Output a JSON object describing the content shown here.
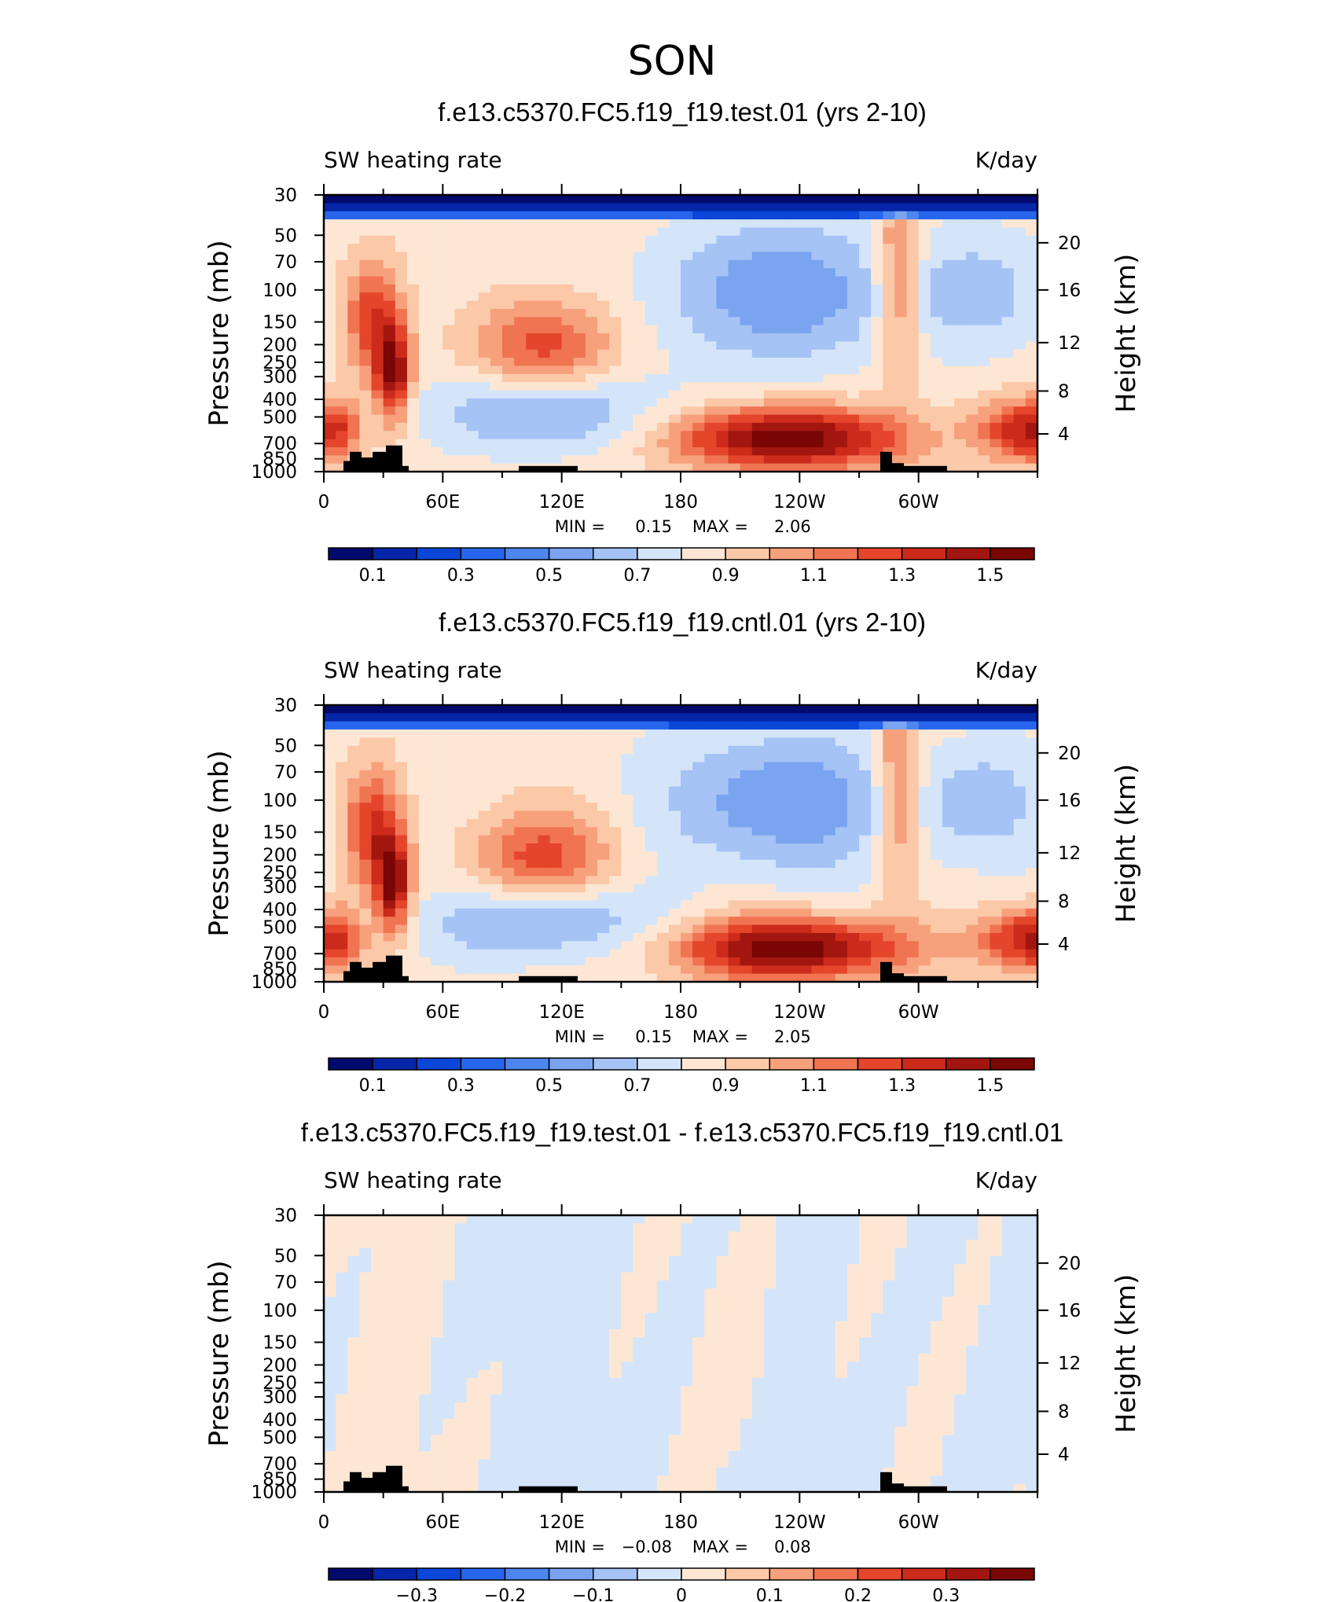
{
  "figure": {
    "season": "SON"
  },
  "colors": {
    "levels12": [
      "#030a6e",
      "#0526a8",
      "#0a46d8",
      "#2766ec",
      "#4e86ef",
      "#7aa4f0",
      "#a5c3f4",
      "#d4e5fa",
      "#fde7d4",
      "#fbc8a8",
      "#f7a07c",
      "#f07452",
      "#e4452b",
      "#cc2a1a",
      "#a31610",
      "#7a0606"
    ],
    "terrain": "#000000"
  },
  "chart_data": [
    {
      "type": "heatmap",
      "title": "f.e13.c5370.FC5.f19_f19.test.01 (yrs 2-10)",
      "left_label": "SW heating rate",
      "right_label": "K/day",
      "ylabel": "Pressure (mb)",
      "y2label": "Height (km)",
      "y_ticks": [
        "30",
        "50",
        "70",
        "100",
        "150",
        "200",
        "250",
        "300",
        "400",
        "500",
        "700",
        "850",
        "1000"
      ],
      "y2_ticks": [
        "20",
        "16",
        "12",
        "8",
        "4"
      ],
      "x_ticks": [
        "0",
        "60E",
        "120E",
        "180",
        "120W",
        "60W"
      ],
      "min_label": "MIN =",
      "min_value": "0.15",
      "max_label": "MAX =",
      "max_value": "2.06",
      "colorbar_labels": [
        "0.1",
        "0.3",
        "0.5",
        "0.7",
        "0.9",
        "1.1",
        "1.3",
        "1.5"
      ]
    },
    {
      "type": "heatmap",
      "title": "f.e13.c5370.FC5.f19_f19.cntl.01 (yrs 2-10)",
      "left_label": "SW heating rate",
      "right_label": "K/day",
      "ylabel": "Pressure (mb)",
      "y2label": "Height (km)",
      "y_ticks": [
        "30",
        "50",
        "70",
        "100",
        "150",
        "200",
        "250",
        "300",
        "400",
        "500",
        "700",
        "850",
        "1000"
      ],
      "y2_ticks": [
        "20",
        "16",
        "12",
        "8",
        "4"
      ],
      "x_ticks": [
        "0",
        "60E",
        "120E",
        "180",
        "120W",
        "60W"
      ],
      "min_label": "MIN =",
      "min_value": "0.15",
      "max_label": "MAX =",
      "max_value": "2.05",
      "colorbar_labels": [
        "0.1",
        "0.3",
        "0.5",
        "0.7",
        "0.9",
        "1.1",
        "1.3",
        "1.5"
      ]
    },
    {
      "type": "heatmap",
      "title": "f.e13.c5370.FC5.f19_f19.test.01 - f.e13.c5370.FC5.f19_f19.cntl.01",
      "left_label": "SW heating rate",
      "right_label": "K/day",
      "ylabel": "Pressure (mb)",
      "y2label": "Height (km)",
      "y_ticks": [
        "30",
        "50",
        "70",
        "100",
        "150",
        "200",
        "250",
        "300",
        "400",
        "500",
        "700",
        "850",
        "1000"
      ],
      "y2_ticks": [
        "20",
        "16",
        "12",
        "8",
        "4"
      ],
      "x_ticks": [
        "0",
        "60E",
        "120E",
        "180",
        "120W",
        "60W"
      ],
      "min_label": "MIN =",
      "min_value": "−0.08",
      "max_label": "MAX =",
      "max_value": "0.08",
      "colorbar_labels": [
        "−0.3",
        "−0.2",
        "−0.1",
        "0",
        "0.1",
        "0.2",
        "0.3"
      ]
    }
  ]
}
